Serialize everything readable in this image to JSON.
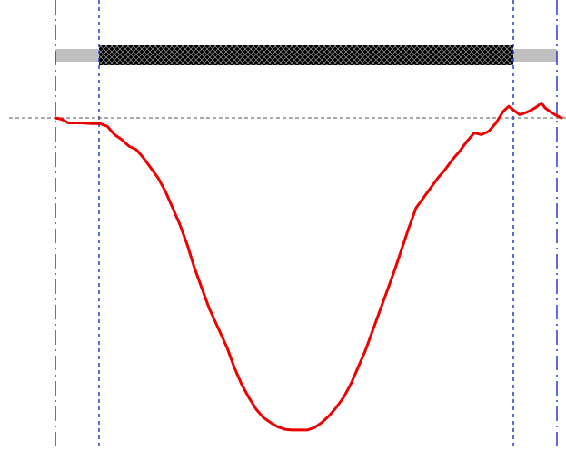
{
  "chart_data": {
    "type": "line",
    "title": "",
    "xlabel": "",
    "ylabel": "",
    "grid": false,
    "legend": "none",
    "xlim": [
      61,
      618
    ],
    "ylim": [
      0,
      1
    ],
    "baseline": 0.94,
    "vertical_markers": [
      {
        "x": 61,
        "style": "dash-dot",
        "color": "#1a2fd0"
      },
      {
        "x": 109,
        "style": "dotted",
        "color": "#1a2fd0"
      },
      {
        "x": 565,
        "style": "dotted",
        "color": "#1a2fd0"
      },
      {
        "x": 613,
        "style": "dash-dot",
        "color": "#1a2fd0"
      }
    ],
    "bar": {
      "extent": [
        61,
        613
      ],
      "active_extent": [
        109,
        565
      ],
      "pattern": "crosshatch",
      "active_color": "#000000",
      "inactive_color": "#c0c0c0"
    },
    "series": [
      {
        "color": "#ee0000",
        "x": [
          61,
          68,
          75,
          82,
          90,
          100,
          110,
          118,
          126,
          134,
          142,
          150,
          158,
          166,
          174,
          182,
          190,
          198,
          206,
          214,
          222,
          230,
          240,
          250,
          258,
          266,
          274,
          282,
          290,
          298,
          306,
          314,
          322,
          330,
          338,
          346,
          354,
          362,
          370,
          378,
          386,
          394,
          402,
          410,
          418,
          426,
          434,
          442,
          450,
          458,
          466,
          474,
          482,
          490,
          498,
          506,
          514,
          522,
          530,
          538,
          546,
          554,
          560,
          566,
          572,
          578,
          584,
          590,
          596,
          600,
          606,
          612,
          618
        ],
        "y": [
          0.94,
          0.936,
          0.925,
          0.925,
          0.925,
          0.923,
          0.923,
          0.915,
          0.89,
          0.875,
          0.855,
          0.845,
          0.82,
          0.79,
          0.76,
          0.72,
          0.67,
          0.62,
          0.56,
          0.49,
          0.43,
          0.37,
          0.31,
          0.25,
          0.19,
          0.14,
          0.1,
          0.065,
          0.04,
          0.025,
          0.012,
          0.005,
          0.003,
          0.003,
          0.003,
          0.01,
          0.025,
          0.045,
          0.07,
          0.1,
          0.14,
          0.19,
          0.24,
          0.3,
          0.36,
          0.42,
          0.48,
          0.545,
          0.61,
          0.67,
          0.7,
          0.73,
          0.76,
          0.785,
          0.815,
          0.84,
          0.87,
          0.895,
          0.89,
          0.9,
          0.925,
          0.96,
          0.975,
          0.962,
          0.95,
          0.955,
          0.962,
          0.972,
          0.985,
          0.97,
          0.958,
          0.948,
          0.94
        ]
      }
    ]
  }
}
